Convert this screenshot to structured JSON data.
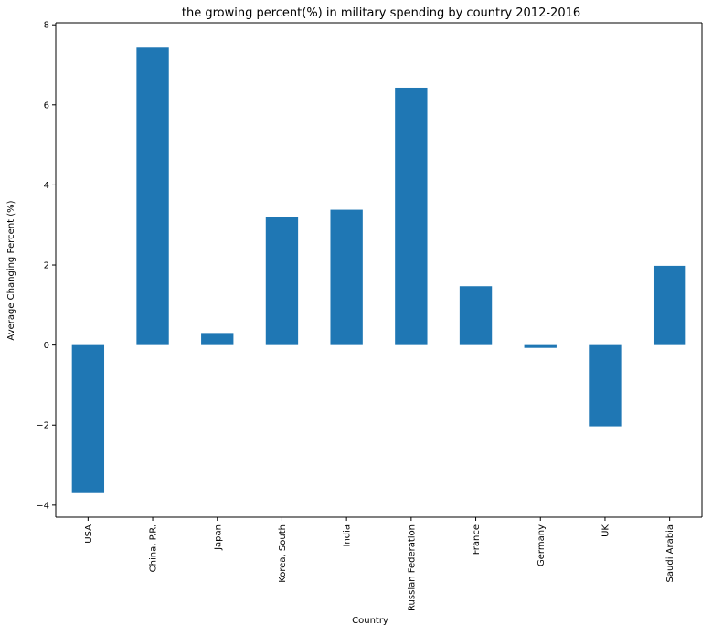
{
  "chart_data": {
    "type": "bar",
    "title": "the growing percent(%) in military spending by country 2012-2016",
    "xlabel": "Country",
    "ylabel": "Average Changing Percent (%)",
    "categories": [
      "USA",
      "China, P.R.",
      "Japan",
      "Korea, South",
      "India",
      "Russian Federation",
      "France",
      "Germany",
      "UK",
      "Saudi Arabia"
    ],
    "values": [
      -3.7,
      7.45,
      0.28,
      3.19,
      3.38,
      6.43,
      1.47,
      -0.07,
      -2.03,
      1.98
    ],
    "ylim": [
      -4.3,
      8.05
    ],
    "yticks": [
      -4,
      -2,
      0,
      2,
      4,
      6,
      8
    ],
    "ytick_labels": [
      "−4",
      "−2",
      "0",
      "2",
      "4",
      "6",
      "8"
    ],
    "bar_color": "#1f77b4",
    "grid": false,
    "legend": "none"
  }
}
